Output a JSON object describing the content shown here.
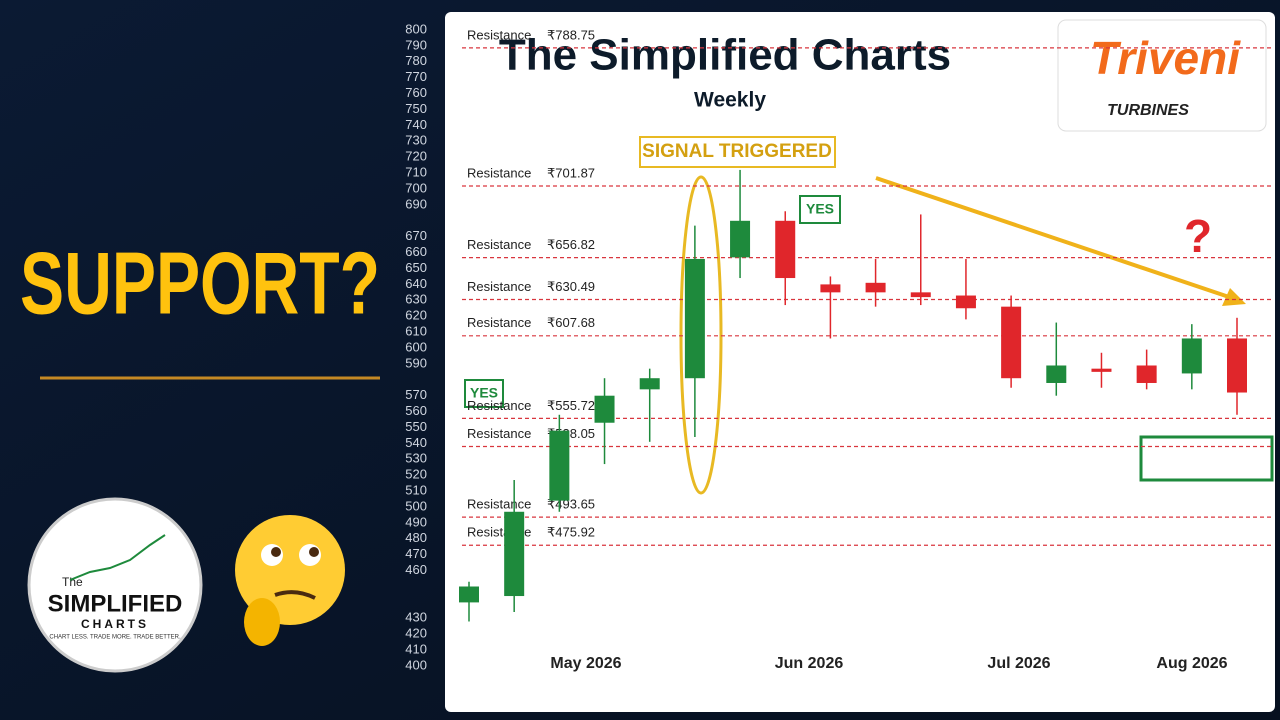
{
  "chart_data": {
    "type": "candlestick",
    "title": "The Simplified Charts",
    "subtitle": "Weekly",
    "ylim": [
      400,
      800
    ],
    "yticks": [
      800,
      790,
      780,
      770,
      760,
      750,
      740,
      730,
      720,
      710,
      700,
      690,
      670,
      660,
      650,
      640,
      630,
      620,
      610,
      600,
      590,
      570,
      560,
      550,
      540,
      530,
      520,
      510,
      500,
      490,
      480,
      470,
      460,
      430,
      420,
      410,
      400
    ],
    "x_labels": [
      "May 2026",
      "Jun 2026",
      "Jul 2026",
      "Aug 2026"
    ],
    "up_color": "#1e8a3c",
    "down_color": "#e0262b",
    "open": [
      440,
      444,
      504,
      553,
      574,
      581,
      657,
      680,
      640,
      641,
      635,
      633,
      626,
      578,
      587,
      589,
      584,
      606
    ],
    "high": [
      453,
      517,
      558,
      581,
      587,
      677,
      712,
      686,
      645,
      656,
      684,
      656,
      633,
      616,
      597,
      599,
      615,
      619
    ],
    "low": [
      428,
      434,
      497,
      527,
      541,
      544,
      644,
      627,
      606,
      626,
      627,
      618,
      575,
      570,
      575,
      574,
      574,
      558
    ],
    "close": [
      450,
      497,
      548,
      570,
      581,
      656,
      680,
      644,
      635,
      635,
      632,
      625,
      581,
      589,
      585,
      578,
      606,
      572
    ],
    "resistance_label": "Resistance",
    "resistance_levels": [
      {
        "value": 788.75,
        "label": "₹788.75"
      },
      {
        "value": 701.87,
        "label": "₹701.87"
      },
      {
        "value": 656.82,
        "label": "₹656.82"
      },
      {
        "value": 630.49,
        "label": "₹630.49"
      },
      {
        "value": 607.68,
        "label": "₹607.68"
      },
      {
        "value": 555.72,
        "label": "₹555.72"
      },
      {
        "value": 538.05,
        "label": "₹538.05"
      },
      {
        "value": 493.65,
        "label": "₹493.65"
      },
      {
        "value": 475.92,
        "label": "₹475.92"
      }
    ],
    "signal_label": "SIGNAL TRIGGERED",
    "yes_labels": [
      "YES",
      "YES"
    ],
    "question_mark": "?"
  },
  "headline": "SUPPORT?",
  "logo": {
    "name": "Triveni",
    "tagline": "TURBINES"
  },
  "badge": {
    "top": "The",
    "main": "SIMPLIFIED",
    "sub": "CHARTS",
    "motto": "CHART LESS. TRADE MORE. TRADE BETTER."
  }
}
